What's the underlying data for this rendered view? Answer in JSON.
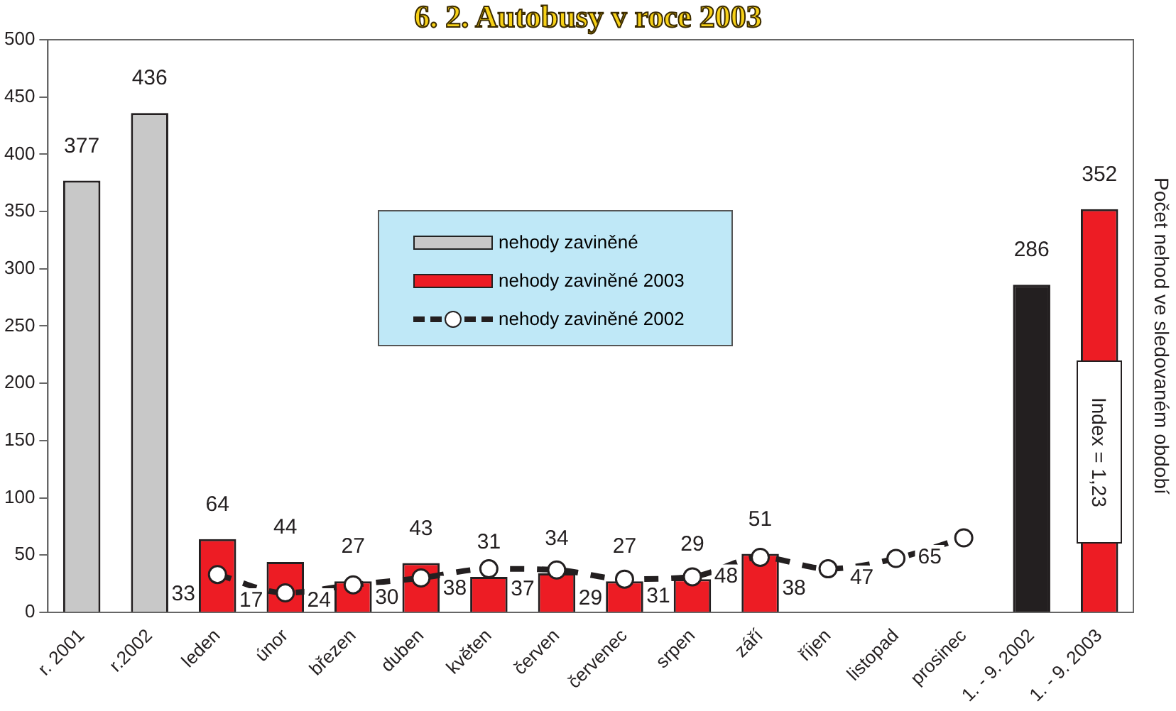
{
  "chart_data": {
    "type": "bar",
    "title": "6. 2. Autobusy v roce 2003",
    "ylabel": "Počet nehod ve sledovaném období",
    "categories": [
      "r. 2001",
      "r.2002",
      "leden",
      "únor",
      "březen",
      "duben",
      "květen",
      "červen",
      "červenec",
      "srpen",
      "září",
      "říjen",
      "listopad",
      "prosinec",
      "1. - 9. 2002",
      "1. - 9. 2003"
    ],
    "series": [
      {
        "name": "nehody zaviněné",
        "color": "#c8c8c8",
        "colors": [
          "#c8c8c8",
          "#c8c8c8",
          null,
          null,
          null,
          null,
          null,
          null,
          null,
          null,
          null,
          null,
          null,
          null,
          "#231f20",
          null
        ],
        "values": [
          377,
          436,
          null,
          null,
          null,
          null,
          null,
          null,
          null,
          null,
          null,
          null,
          null,
          null,
          286,
          null
        ]
      },
      {
        "name": "nehody zaviněné 2003",
        "color": "#ed1c24",
        "values": [
          null,
          null,
          64,
          44,
          27,
          43,
          31,
          34,
          27,
          29,
          51,
          null,
          null,
          null,
          null,
          352
        ]
      },
      {
        "name": "nehody zaviněné 2002",
        "type": "line",
        "color": "#231f20",
        "marker": "circle",
        "line_style": "dashed",
        "values": [
          null,
          null,
          33,
          17,
          24,
          30,
          38,
          37,
          29,
          31,
          48,
          38,
          47,
          65,
          null,
          null
        ]
      }
    ],
    "ylim": [
      0,
      500
    ],
    "yticks": [
      0,
      50,
      100,
      150,
      200,
      250,
      300,
      350,
      400,
      450,
      500
    ],
    "grid": false,
    "legend": "top center",
    "data_labels": true,
    "annotations": [
      "Index = 1,23"
    ]
  }
}
